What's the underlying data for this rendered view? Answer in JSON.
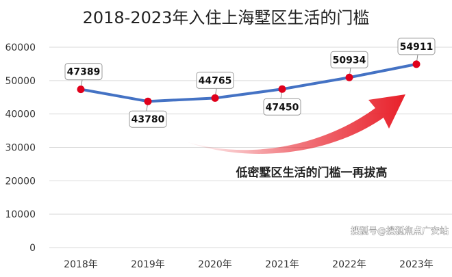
{
  "chart_data": {
    "type": "line",
    "title": "2018-2023年入住上海墅区生活的门槛",
    "categories": [
      "2018年",
      "2019年",
      "2020年",
      "2021年",
      "2022年",
      "2023年"
    ],
    "values": [
      47389,
      43780,
      44765,
      47450,
      50934,
      54911
    ],
    "data_labels": [
      "47389",
      "43780",
      "44765",
      "47450",
      "50934",
      "54911"
    ],
    "xlabel": "",
    "ylabel": "",
    "ylim": [
      0,
      60000
    ],
    "yticks": [
      "0",
      "10000",
      "20000",
      "30000",
      "40000",
      "50000",
      "60000"
    ],
    "grid": true,
    "line_color": "#4472C4",
    "marker_color": "#E0001B",
    "annotation": "低密墅区生活的门槛一再拔高",
    "arrow_color": "#E8202A"
  },
  "watermark": "搜狐号@搜狐焦点广安站"
}
